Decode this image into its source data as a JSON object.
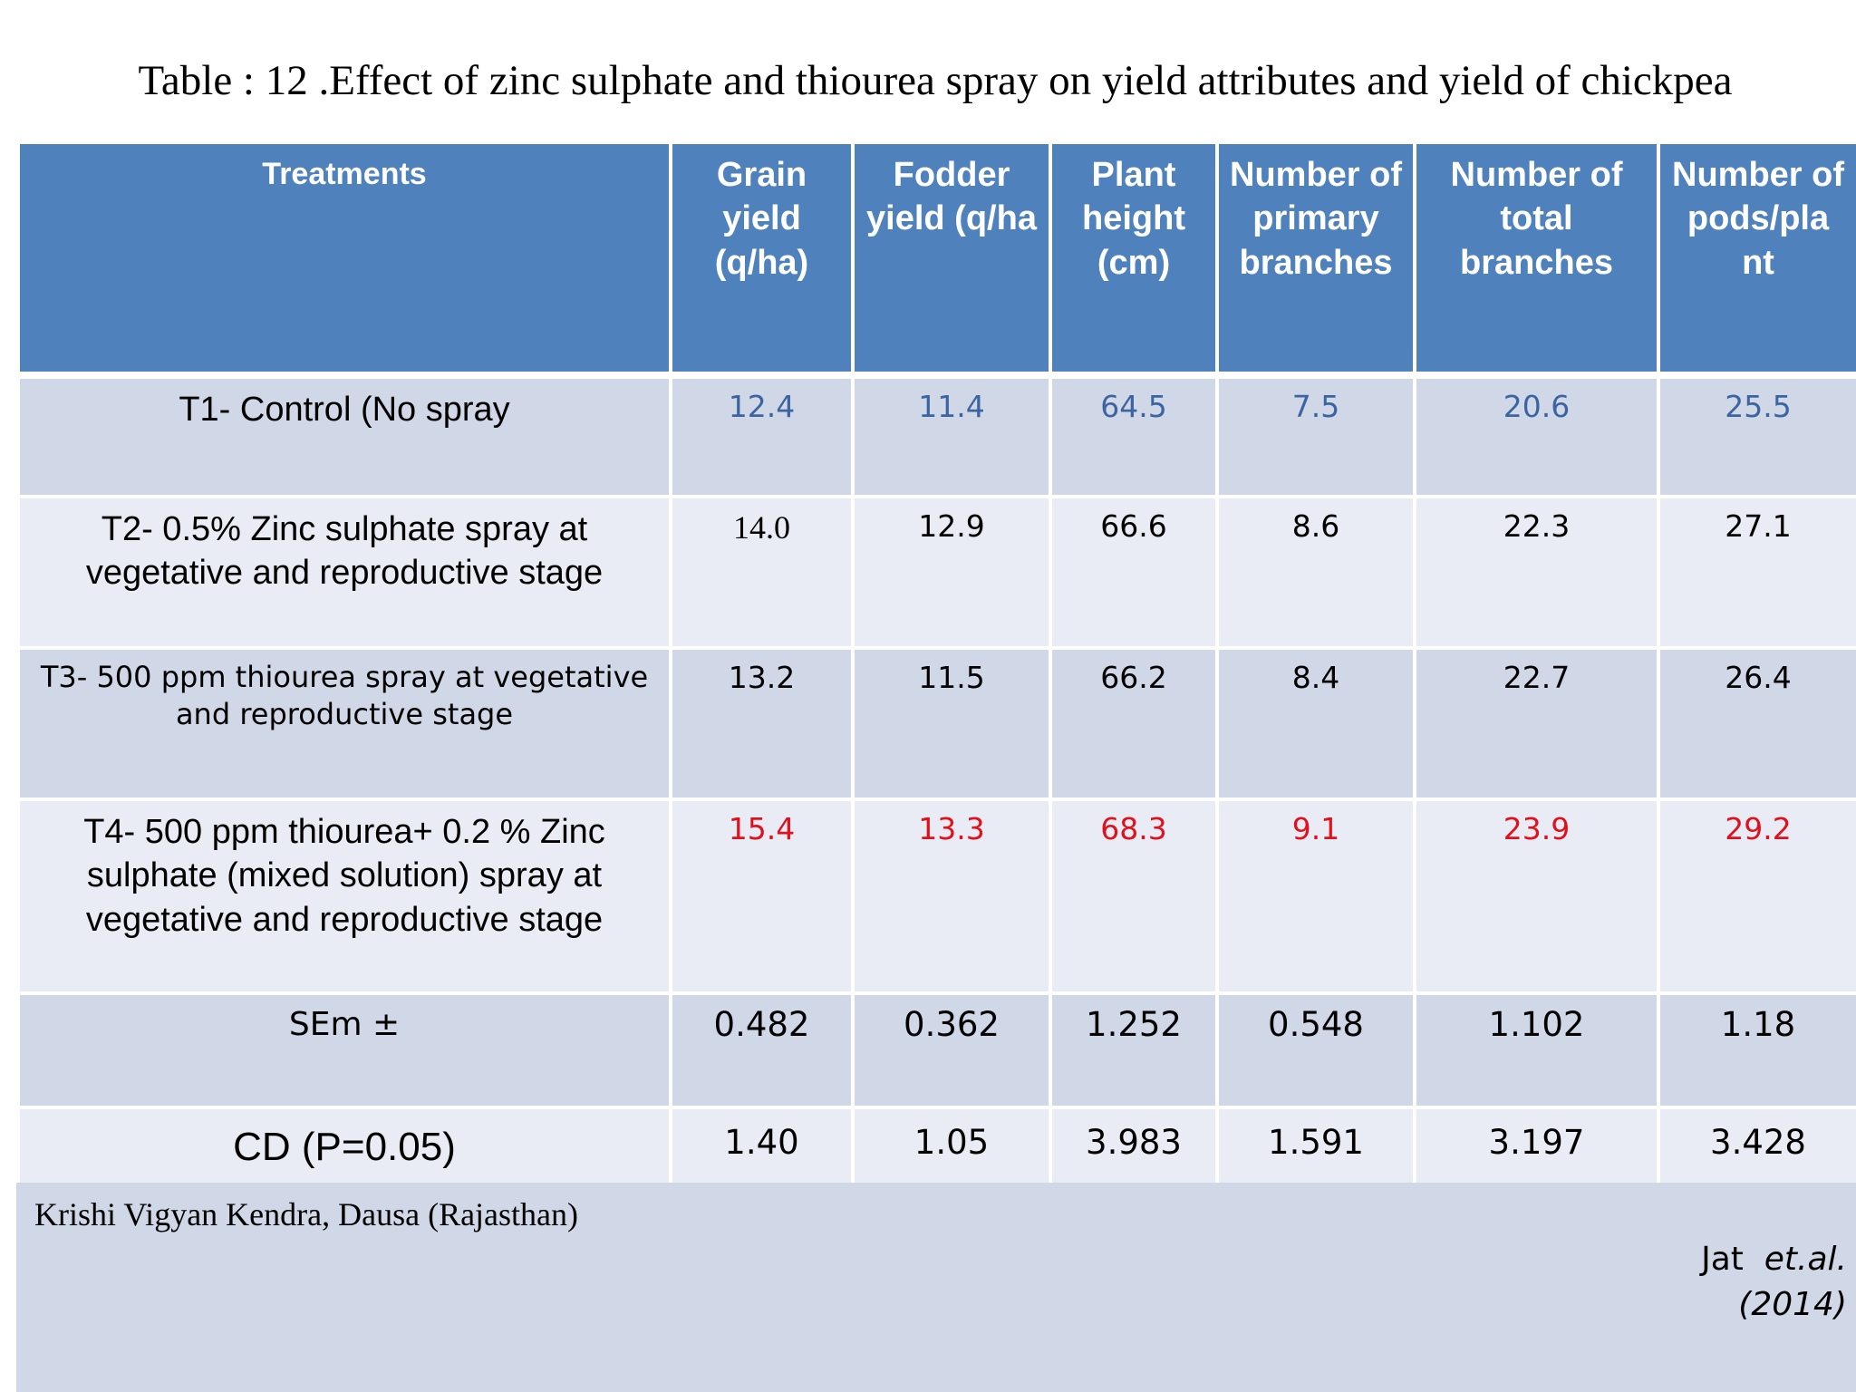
{
  "title": "Table : 12 .Effect of zinc sulphate and thiourea spray on yield attributes and yield of chickpea",
  "headers": [
    "Treatments",
    "Grain yield (q/ha)",
    "Fodder yield (q/ha",
    "Plant height (cm)",
    "Number of primary branches",
    "Number of total branches",
    "Number of pods/pla nt"
  ],
  "rows": [
    {
      "treatment": "T1- Control (No spray",
      "values": [
        "12.4",
        "11.4",
        "64.5",
        "7.5",
        "20.6",
        "25.5"
      ]
    },
    {
      "treatment": "T2- 0.5% Zinc sulphate spray at vegetative and reproductive stage",
      "values": [
        "14.0",
        "12.9",
        "66.6",
        "8.6",
        "22.3",
        "27.1"
      ]
    },
    {
      "treatment": "T3- 500 ppm thiourea spray at vegetative and reproductive stage",
      "values": [
        "13.2",
        "11.5",
        "66.2",
        "8.4",
        "22.7",
        "26.4"
      ]
    },
    {
      "treatment": "T4- 500 ppm thiourea+ 0.2 % Zinc sulphate (mixed solution) spray at vegetative and reproductive stage",
      "values": [
        "15.4",
        "13.3",
        "68.3",
        "9.1",
        "23.9",
        "29.2"
      ]
    },
    {
      "treatment": "SEm ±",
      "values": [
        "0.482",
        "0.362",
        "1.252",
        "0.548",
        "1.102",
        "1.18"
      ]
    },
    {
      "treatment": "CD (P=0.05)",
      "values": [
        "1.40",
        "1.05",
        "3.983",
        "1.591",
        "3.197",
        "3.428"
      ]
    }
  ],
  "footer": {
    "source": "Krishi Vigyan Kendra, Dausa (Rajasthan)",
    "cite_author": "Jat",
    "cite_etal": "et.al.",
    "cite_year": "(2014)"
  },
  "colors": {
    "header_bg": "#4f81bd",
    "band_bg": "#d0d8e8",
    "plain_bg": "#e9ecf4",
    "t1_values": "#3c64a0",
    "t4_values": "#e0101c"
  }
}
